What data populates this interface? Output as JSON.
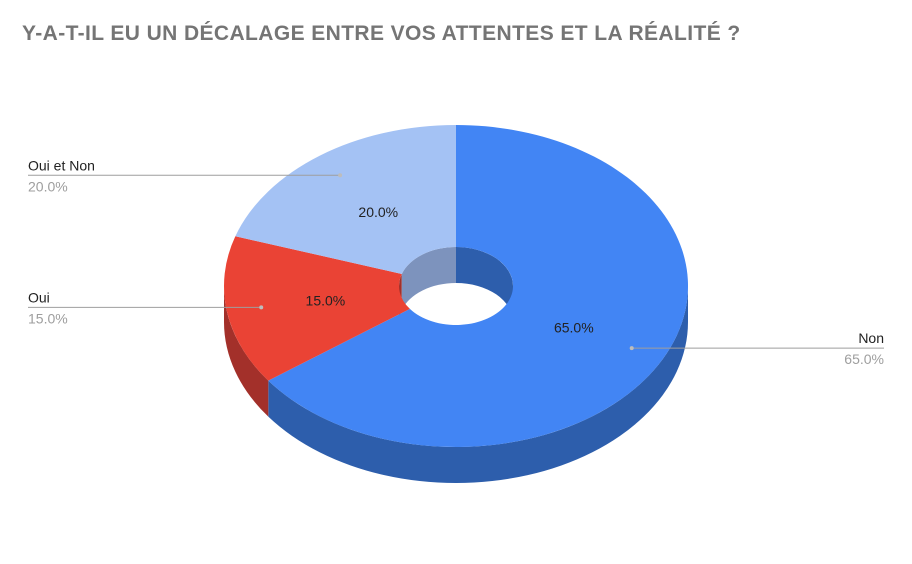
{
  "chart_data": {
    "type": "pie",
    "style": "3d-donut",
    "title": "Y-A-T-IL EU UN DÉCALAGE ENTRE VOS ATTENTES ET LA RÉALITÉ ?",
    "legend": "side-labels",
    "slices": [
      {
        "label": "Non",
        "value": 65.0,
        "pct_label": "65.0%",
        "color": "#4285f4",
        "side_color": "#2d5eac"
      },
      {
        "label": "Oui",
        "value": 15.0,
        "pct_label": "15.0%",
        "color": "#ea4335",
        "side_color": "#a3302a"
      },
      {
        "label": "Oui et Non",
        "value": 20.0,
        "pct_label": "20.0%",
        "color": "#a4c2f4",
        "side_color": "#7d93bd"
      }
    ]
  }
}
